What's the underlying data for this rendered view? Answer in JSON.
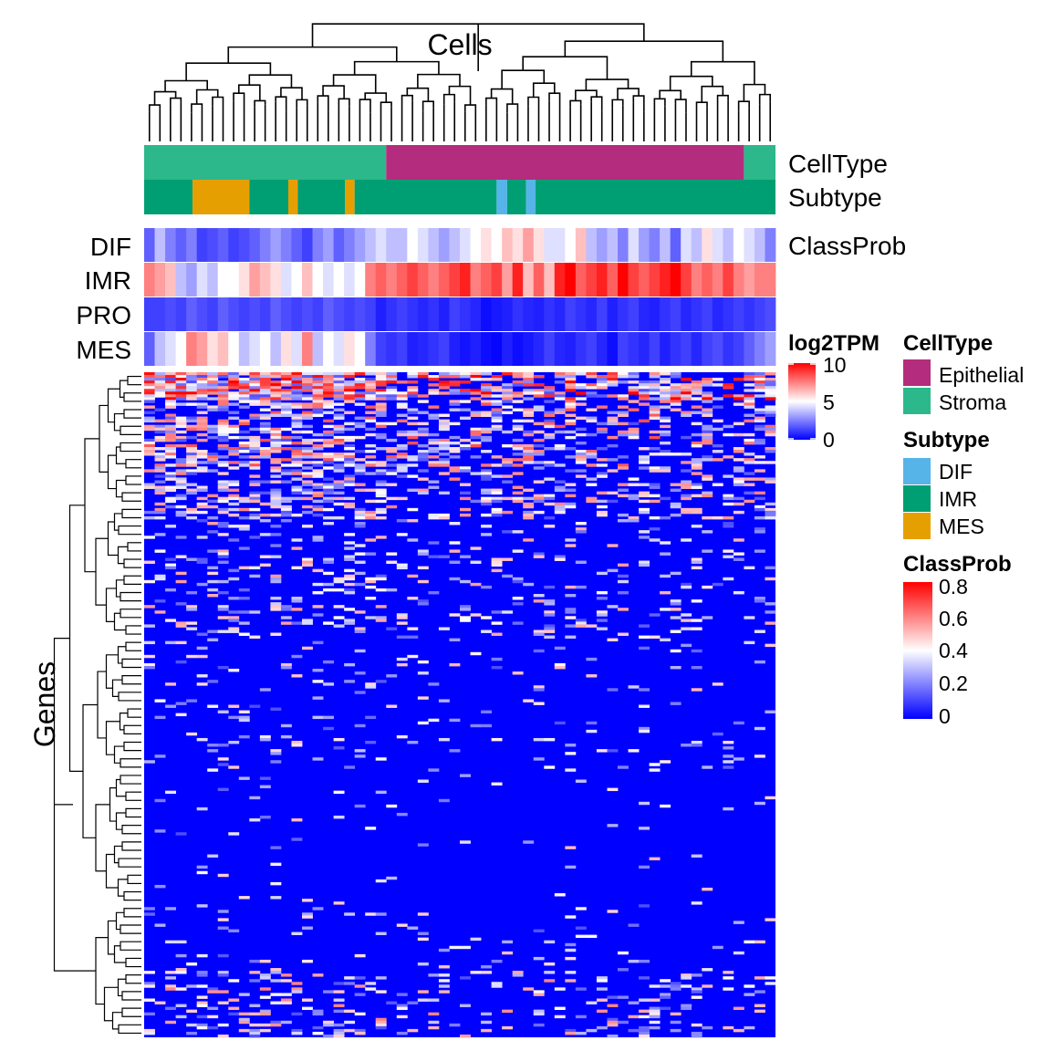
{
  "chart_data": {
    "type": "heatmap",
    "title": "Cells",
    "xlabel": "",
    "ylabel": "Genes",
    "n_cells": 60,
    "n_genes": 240,
    "row_labels": [
      "DIF",
      "IMR",
      "PRO",
      "MES"
    ],
    "annotations": {
      "celltype_label": "CellType",
      "subtype_label": "Subtype",
      "classprob_label": "ClassProb",
      "celltype_segments": [
        {
          "value": "Stroma",
          "from": 0,
          "to": 23
        },
        {
          "value": "Epithelial",
          "from": 23,
          "to": 57
        },
        {
          "value": "Stroma",
          "from": 57,
          "to": 60
        }
      ],
      "subtype_segments": [
        {
          "value": "IMR",
          "from": 0,
          "to": 4.6
        },
        {
          "value": "MES",
          "from": 4.6,
          "to": 10.0
        },
        {
          "value": "IMR",
          "from": 10.0,
          "to": 13.7
        },
        {
          "value": "MES",
          "from": 13.7,
          "to": 14.6
        },
        {
          "value": "IMR",
          "from": 14.6,
          "to": 19.1
        },
        {
          "value": "MES",
          "from": 19.1,
          "to": 20.0
        },
        {
          "value": "IMR",
          "from": 20.0,
          "to": 33.5
        },
        {
          "value": "DIF",
          "from": 33.5,
          "to": 34.5
        },
        {
          "value": "IMR",
          "from": 34.5,
          "to": 36.3
        },
        {
          "value": "DIF",
          "from": 36.3,
          "to": 37.2
        },
        {
          "value": "IMR",
          "from": 37.2,
          "to": 60
        }
      ],
      "classprob": {
        "DIF": [
          0.15,
          0.3,
          0.2,
          0.15,
          0.2,
          0.1,
          0.12,
          0.15,
          0.1,
          0.12,
          0.15,
          0.2,
          0.25,
          0.2,
          0.15,
          0.1,
          0.2,
          0.25,
          0.15,
          0.2,
          0.25,
          0.3,
          0.35,
          0.3,
          0.3,
          0.4,
          0.35,
          0.3,
          0.25,
          0.3,
          0.35,
          0.4,
          0.45,
          0.4,
          0.5,
          0.45,
          0.55,
          0.45,
          0.35,
          0.35,
          0.4,
          0.5,
          0.3,
          0.25,
          0.3,
          0.2,
          0.35,
          0.25,
          0.2,
          0.3,
          0.15,
          0.35,
          0.3,
          0.45,
          0.35,
          0.3,
          0.4,
          0.35,
          0.3,
          0.2
        ],
        "IMR": [
          0.6,
          0.55,
          0.5,
          0.3,
          0.25,
          0.35,
          0.3,
          0.4,
          0.4,
          0.45,
          0.55,
          0.5,
          0.45,
          0.35,
          0.4,
          0.5,
          0.4,
          0.35,
          0.4,
          0.35,
          0.4,
          0.6,
          0.65,
          0.6,
          0.65,
          0.7,
          0.65,
          0.6,
          0.65,
          0.7,
          0.75,
          0.6,
          0.65,
          0.7,
          0.55,
          0.75,
          0.5,
          0.65,
          0.5,
          0.75,
          0.8,
          0.65,
          0.7,
          0.75,
          0.65,
          0.8,
          0.7,
          0.65,
          0.7,
          0.75,
          0.8,
          0.7,
          0.6,
          0.65,
          0.6,
          0.7,
          0.6,
          0.55,
          0.6,
          0.6
        ],
        "PRO": [
          0.1,
          0.1,
          0.12,
          0.1,
          0.15,
          0.12,
          0.1,
          0.15,
          0.12,
          0.1,
          0.12,
          0.1,
          0.15,
          0.12,
          0.1,
          0.12,
          0.1,
          0.15,
          0.12,
          0.1,
          0.12,
          0.1,
          0.05,
          0.08,
          0.1,
          0.08,
          0.06,
          0.08,
          0.05,
          0.1,
          0.08,
          0.06,
          0.02,
          0.04,
          0.05,
          0.08,
          0.06,
          0.05,
          0.08,
          0.06,
          0.1,
          0.08,
          0.06,
          0.1,
          0.05,
          0.08,
          0.1,
          0.06,
          0.05,
          0.08,
          0.1,
          0.06,
          0.08,
          0.1,
          0.06,
          0.08,
          0.1,
          0.08,
          0.1,
          0.12
        ],
        "MES": [
          0.15,
          0.3,
          0.35,
          0.4,
          0.6,
          0.55,
          0.45,
          0.5,
          0.4,
          0.3,
          0.35,
          0.4,
          0.3,
          0.45,
          0.35,
          0.6,
          0.3,
          0.4,
          0.35,
          0.45,
          0.4,
          0.2,
          0.1,
          0.08,
          0.1,
          0.05,
          0.06,
          0.08,
          0.1,
          0.05,
          0.03,
          0.05,
          0.02,
          0.01,
          0.05,
          0.02,
          0.04,
          0.06,
          0.1,
          0.06,
          0.05,
          0.08,
          0.1,
          0.06,
          0.02,
          0.1,
          0.08,
          0.06,
          0.1,
          0.05,
          0.08,
          0.1,
          0.06,
          0.1,
          0.12,
          0.08,
          0.1,
          0.15,
          0.2,
          0.25
        ]
      }
    },
    "colorscales": {
      "log2TPM": {
        "colors": [
          "#0000ff",
          "#ffffff",
          "#ff0000"
        ],
        "domain": [
          0,
          5,
          10
        ]
      },
      "ClassProb": {
        "colors": [
          "#0000ff",
          "#ffffff",
          "#ff0000"
        ],
        "domain": [
          0,
          0.4,
          0.8
        ]
      }
    }
  },
  "legends": {
    "log2tpm": {
      "title": "log2TPM",
      "ticks": [
        "10",
        "5",
        "0"
      ]
    },
    "celltype": {
      "title": "CellType",
      "items": [
        {
          "label": "Epithelial",
          "color": "#b42c7e"
        },
        {
          "label": "Stroma",
          "color": "#2cb88b"
        }
      ]
    },
    "subtype": {
      "title": "Subtype",
      "items": [
        {
          "label": "DIF",
          "color": "#56b4e9"
        },
        {
          "label": "IMR",
          "color": "#009e73"
        },
        {
          "label": "MES",
          "color": "#e69f00"
        }
      ]
    },
    "classprob": {
      "title": "ClassProb",
      "ticks": [
        "0.8",
        "0.6",
        "0.4",
        "0.2",
        "0"
      ]
    }
  },
  "colors": {
    "epithelial": "#b42c7e",
    "stroma": "#2cb88b",
    "dif": "#56b4e9",
    "imr": "#009e73",
    "mes": "#e69f00"
  }
}
